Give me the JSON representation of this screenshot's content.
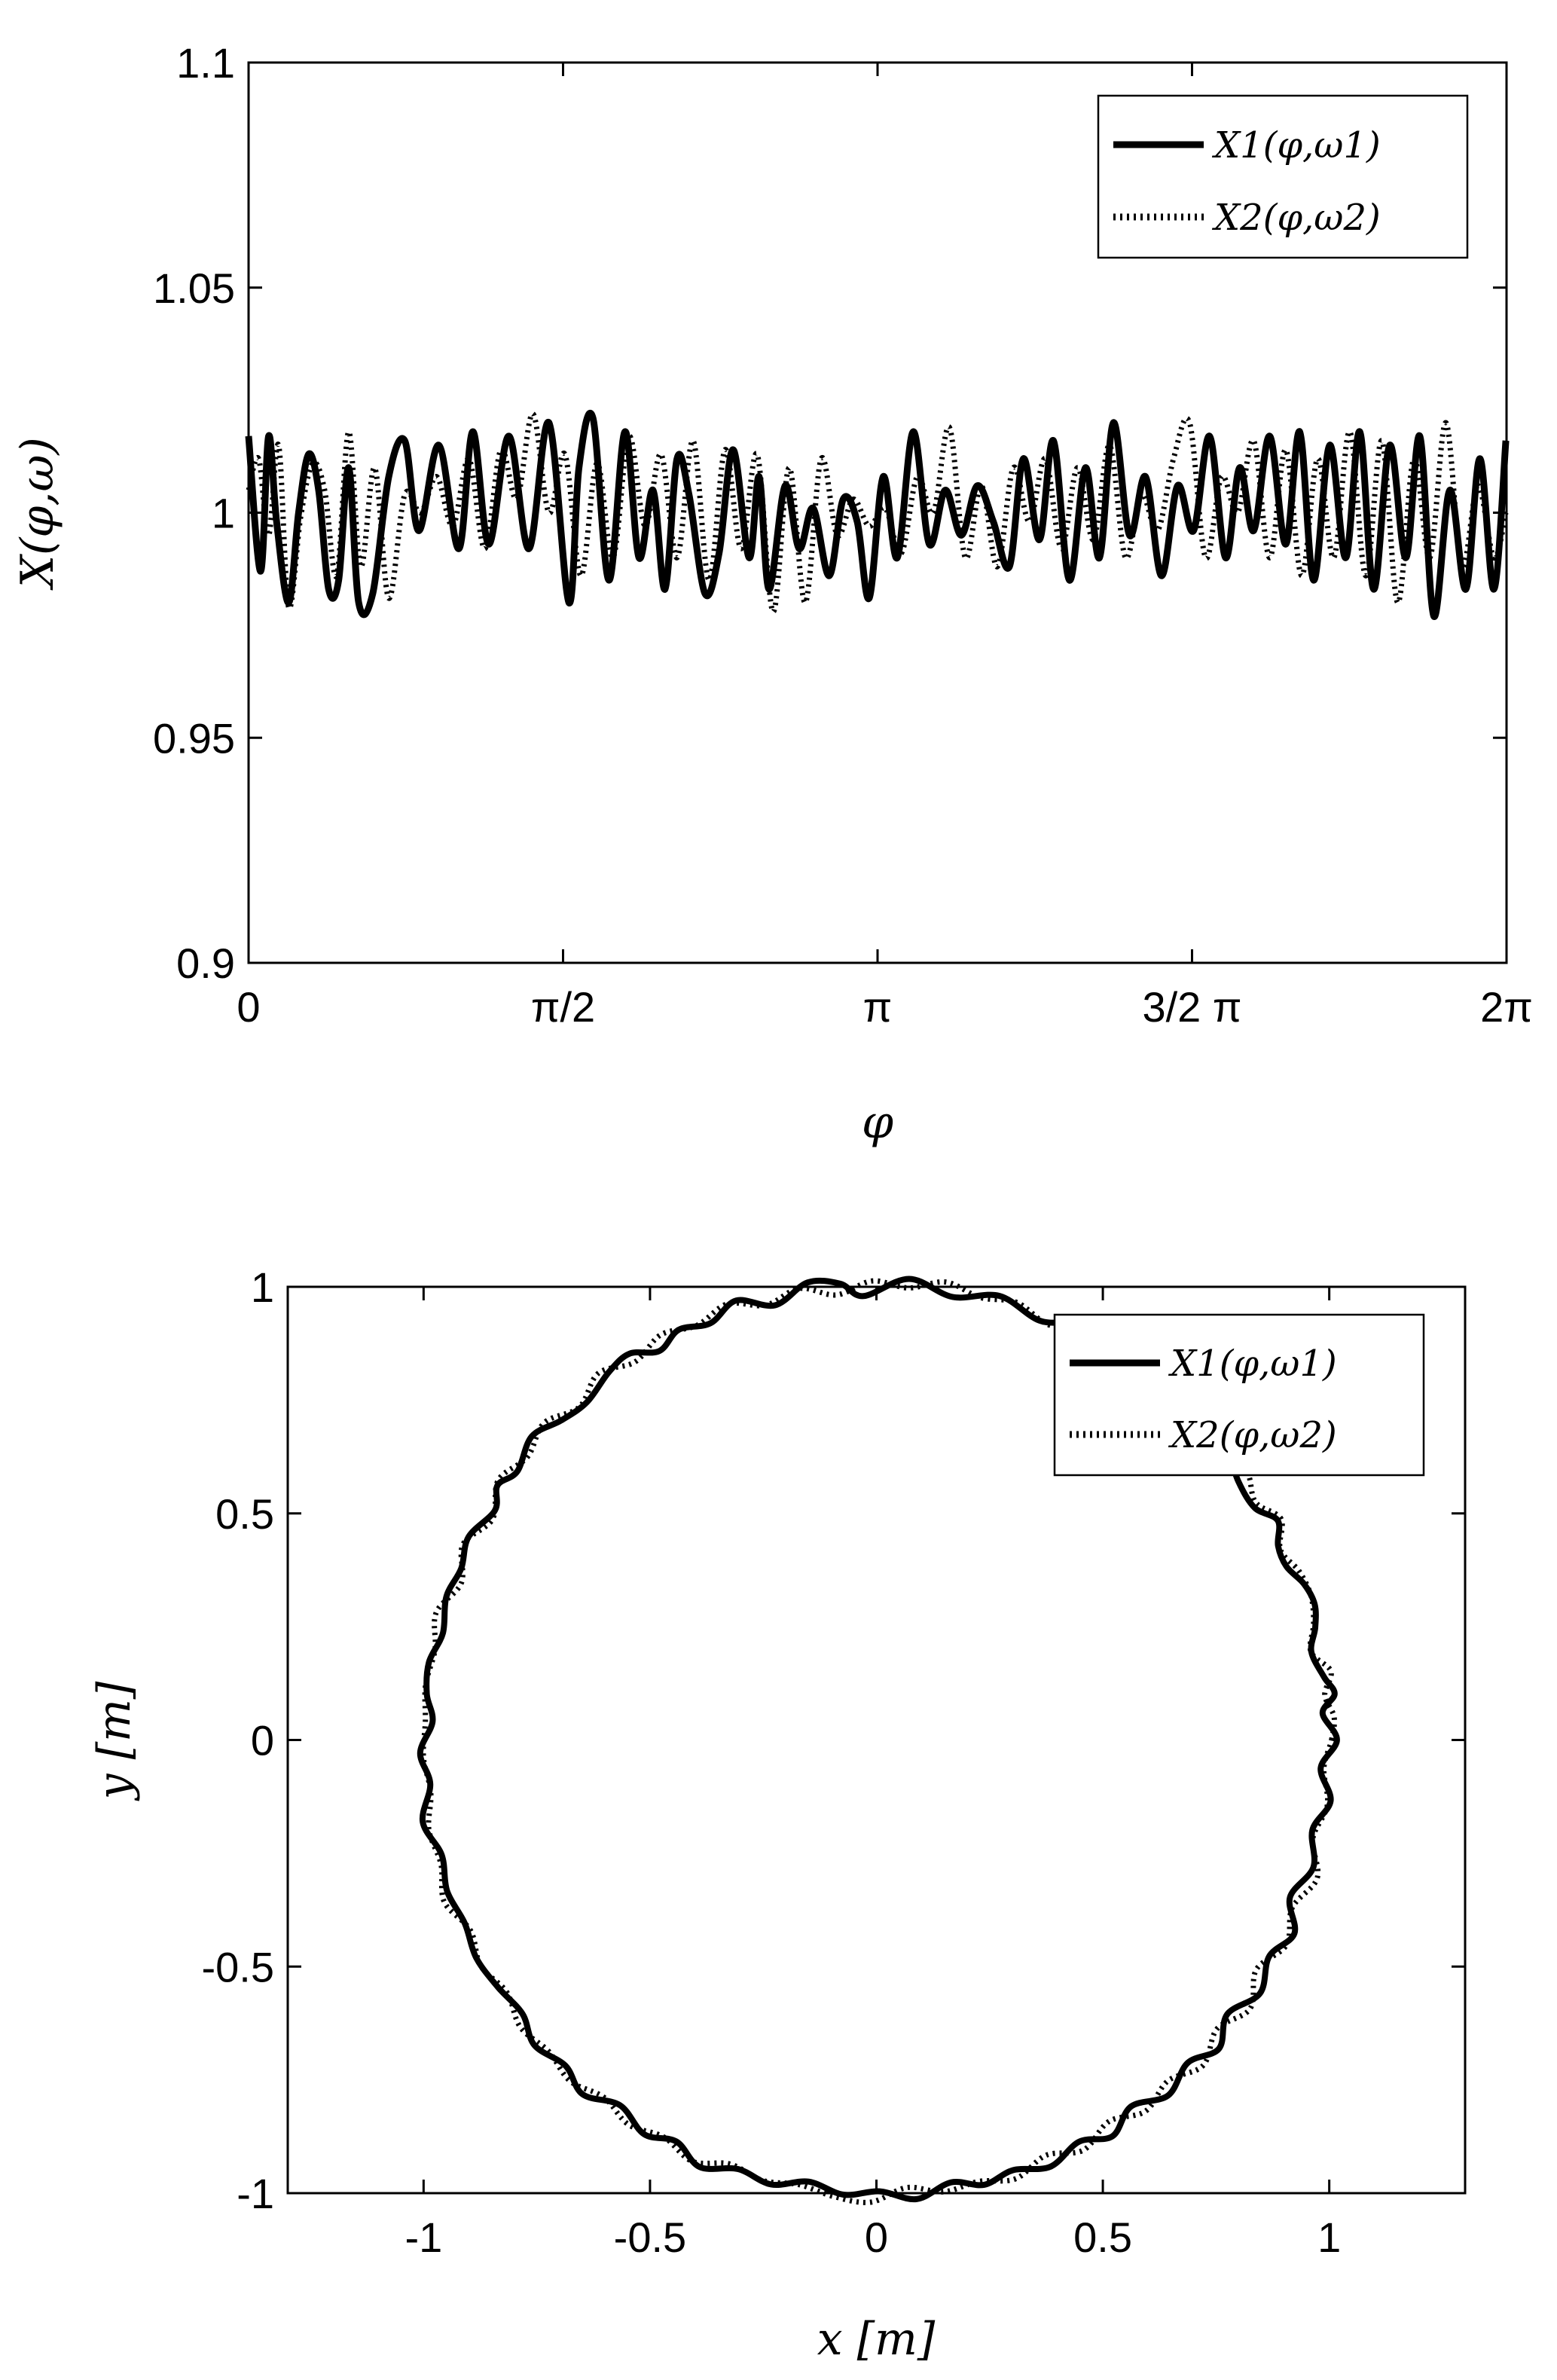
{
  "chart_data": [
    {
      "type": "line",
      "xlabel": "φ",
      "ylabel": "X(φ,ω)",
      "xlim": [
        0,
        6.2832
      ],
      "ylim": [
        0.9,
        1.1
      ],
      "xticks": [
        {
          "value": 0,
          "label": "0"
        },
        {
          "value": 1.5708,
          "label": "π/2"
        },
        {
          "value": 3.1416,
          "label": "π"
        },
        {
          "value": 4.7124,
          "label": "3/2 π"
        },
        {
          "value": 6.2832,
          "label": "2π"
        }
      ],
      "yticks": [
        {
          "value": 0.9,
          "label": "0.9"
        },
        {
          "value": 0.95,
          "label": "0.95"
        },
        {
          "value": 1.0,
          "label": "1"
        },
        {
          "value": 1.05,
          "label": "1.05"
        },
        {
          "value": 1.1,
          "label": "1.1"
        }
      ],
      "grid": false,
      "legend_position": "top-right",
      "series": [
        {
          "name": "X1(φ,ω1)",
          "style": "solid",
          "color": "#000000",
          "x": [
            0.0,
            0.06,
            0.1,
            0.14,
            0.2,
            0.25,
            0.3,
            0.35,
            0.4,
            0.45,
            0.5,
            0.55,
            0.62,
            0.7,
            0.78,
            0.85,
            0.95,
            1.05,
            1.12,
            1.2,
            1.3,
            1.4,
            1.5,
            1.6,
            1.65,
            1.72,
            1.8,
            1.88,
            1.95,
            2.02,
            2.08,
            2.14,
            2.2,
            2.28,
            2.35,
            2.42,
            2.5,
            2.55,
            2.6,
            2.68,
            2.75,
            2.82,
            2.9,
            2.97,
            3.04,
            3.1,
            3.17,
            3.24,
            3.32,
            3.4,
            3.48,
            3.56,
            3.64,
            3.72,
            3.8,
            3.87,
            3.95,
            4.02,
            4.1,
            4.18,
            4.25,
            4.32,
            4.4,
            4.48,
            4.56,
            4.64,
            4.72,
            4.8,
            4.88,
            4.95,
            5.02,
            5.1,
            5.18,
            5.25,
            5.32,
            5.4,
            5.48,
            5.55,
            5.62,
            5.7,
            5.78,
            5.85,
            5.92,
            6.0,
            6.08,
            6.15,
            6.22,
            6.28
          ],
          "y": [
            1.017,
            0.987,
            1.017,
            0.998,
            0.98,
            1.0,
            1.013,
            1.005,
            0.983,
            0.985,
            1.01,
            0.98,
            0.982,
            1.008,
            1.016,
            0.996,
            1.015,
            0.992,
            1.018,
            0.993,
            1.017,
            0.992,
            1.02,
            0.98,
            1.01,
            1.021,
            0.985,
            1.018,
            0.99,
            1.005,
            0.983,
            1.012,
            1.004,
            0.982,
            0.991,
            1.014,
            0.99,
            1.008,
            0.983,
            1.006,
            0.992,
            1.001,
            0.986,
            1.003,
            0.998,
            0.981,
            1.008,
            0.99,
            1.018,
            0.993,
            1.005,
            0.995,
            1.006,
            0.998,
            0.988,
            1.012,
            0.994,
            1.016,
            0.985,
            1.01,
            0.99,
            1.02,
            0.995,
            1.008,
            0.986,
            1.006,
            0.996,
            1.017,
            0.99,
            1.01,
            0.996,
            1.017,
            0.993,
            1.018,
            0.985,
            1.015,
            0.99,
            1.018,
            0.983,
            1.015,
            0.99,
            1.017,
            0.977,
            1.005,
            0.983,
            1.012,
            0.983,
            1.016
          ]
        },
        {
          "name": "X2(φ,ω2)",
          "style": "dotted",
          "color": "#000000",
          "x": [
            0.0,
            0.05,
            0.1,
            0.15,
            0.2,
            0.26,
            0.32,
            0.38,
            0.44,
            0.5,
            0.56,
            0.63,
            0.7,
            0.78,
            0.86,
            0.94,
            1.02,
            1.1,
            1.18,
            1.26,
            1.34,
            1.42,
            1.5,
            1.58,
            1.66,
            1.74,
            1.82,
            1.9,
            1.98,
            2.06,
            2.14,
            2.22,
            2.3,
            2.38,
            2.46,
            2.54,
            2.62,
            2.7,
            2.78,
            2.86,
            2.94,
            3.02,
            3.1,
            3.18,
            3.26,
            3.34,
            3.42,
            3.5,
            3.58,
            3.66,
            3.74,
            3.82,
            3.9,
            3.98,
            4.06,
            4.14,
            4.22,
            4.3,
            4.38,
            4.46,
            4.54,
            4.62,
            4.7,
            4.78,
            4.86,
            4.94,
            5.02,
            5.1,
            5.18,
            5.26,
            5.34,
            5.42,
            5.5,
            5.58,
            5.66,
            5.74,
            5.82,
            5.9,
            5.98,
            6.06,
            6.14,
            6.22,
            6.28
          ],
          "y": [
            1.005,
            1.012,
            0.995,
            1.015,
            0.979,
            0.999,
            1.011,
            1.005,
            0.986,
            1.018,
            0.988,
            1.01,
            0.981,
            1.004,
            1.0,
            1.008,
            0.997,
            1.012,
            0.992,
            1.014,
            1.003,
            1.022,
            1.0,
            1.013,
            0.986,
            1.011,
            0.99,
            1.017,
            0.997,
            1.013,
            0.99,
            1.016,
            0.985,
            1.014,
            0.992,
            1.013,
            0.978,
            1.01,
            0.98,
            1.012,
            0.995,
            1.003,
            0.997,
            1.001,
            0.991,
            1.008,
            1.0,
            1.019,
            0.99,
            1.006,
            0.988,
            1.01,
            0.998,
            1.012,
            0.992,
            1.01,
            0.994,
            1.015,
            0.99,
            1.004,
            0.996,
            1.012,
            1.02,
            0.99,
            1.008,
            1.0,
            1.016,
            0.99,
            1.014,
            0.986,
            1.012,
            0.99,
            1.018,
            0.986,
            1.016,
            0.98,
            1.012,
            0.99,
            1.02,
            0.988,
            1.006,
            0.99,
            1.0
          ]
        }
      ]
    },
    {
      "type": "line",
      "xlabel": "x [m]",
      "ylabel": "y [m]",
      "xlim": [
        -1.3,
        1.3
      ],
      "ylim": [
        -1.0,
        1.0
      ],
      "xticks": [
        {
          "value": -1,
          "label": "-1"
        },
        {
          "value": -0.5,
          "label": "-0.5"
        },
        {
          "value": 0,
          "label": "0"
        },
        {
          "value": 0.5,
          "label": "0.5"
        },
        {
          "value": 1,
          "label": "1"
        }
      ],
      "yticks": [
        {
          "value": -1,
          "label": "-1"
        },
        {
          "value": -0.5,
          "label": "-0.5"
        },
        {
          "value": 0,
          "label": "0"
        },
        {
          "value": 0.5,
          "label": "0.5"
        },
        {
          "value": 1,
          "label": "1"
        }
      ],
      "grid": false,
      "legend_position": "top-right",
      "description_source": "polar curve of the series in the upper chart: x = X(φ)cos φ, y = X(φ)sin φ",
      "series": [
        {
          "name": "X1(φ,ω1)",
          "style": "solid",
          "color": "#000000",
          "derived_from": 0
        },
        {
          "name": "X2(φ,ω2)",
          "style": "dotted",
          "color": "#000000",
          "derived_from": 1
        }
      ]
    }
  ]
}
